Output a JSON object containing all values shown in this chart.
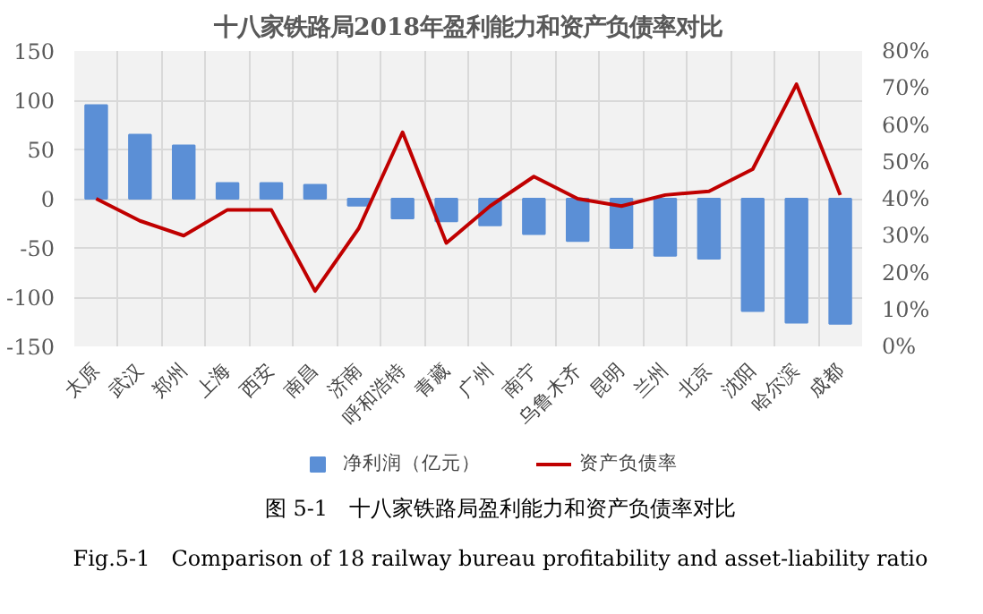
{
  "chart_data": {
    "type": "bar",
    "title": "十八家铁路局2018年盈利能力和资产负债率对比",
    "categories": [
      "太原",
      "武汉",
      "郑州",
      "上海",
      "西安",
      "南昌",
      "济南",
      "呼和浩特",
      "青藏",
      "广州",
      "南宁",
      "乌鲁木齐",
      "昆明",
      "兰州",
      "北京",
      "沈阳",
      "哈尔滨",
      "成都"
    ],
    "series": [
      {
        "name": "净利润（亿元）",
        "color": "#5b8fd6",
        "values": [
          95,
          65,
          54,
          16,
          16,
          14,
          -7,
          -20,
          -23,
          -27,
          -36,
          -43,
          -50,
          -58,
          -61,
          -114,
          -126,
          -127
        ]
      },
      {
        "name": "资产负债率",
        "type": "line",
        "axis": "y2",
        "color": "#c00000",
        "values": [
          40,
          34,
          30,
          37,
          37,
          15,
          32,
          58,
          28,
          38,
          46,
          40,
          38,
          41,
          42,
          48,
          71,
          41
        ]
      }
    ],
    "ylim": [
      -150,
      150
    ],
    "yticks": [
      -150,
      -100,
      -50,
      0,
      50,
      100,
      150
    ],
    "y2lim": [
      0,
      80
    ],
    "y2ticks": [
      {
        "value": 0,
        "label": "0%"
      },
      {
        "value": 10,
        "label": "10%"
      },
      {
        "value": 20,
        "label": "20%"
      },
      {
        "value": 30,
        "label": "30%"
      },
      {
        "value": 40,
        "label": "40%"
      },
      {
        "value": 50,
        "label": "50%"
      },
      {
        "value": 60,
        "label": "60%"
      },
      {
        "value": 70,
        "label": "70%"
      },
      {
        "value": 80,
        "label": "80%"
      }
    ],
    "grid": true,
    "legend": "bottom",
    "annotations": [
      "图 5-1　十八家铁路局盈利能力和资产负债率对比",
      "Fig.5-1　Comparison of 18 railway bureau profitability and asset-liability ratio"
    ]
  }
}
